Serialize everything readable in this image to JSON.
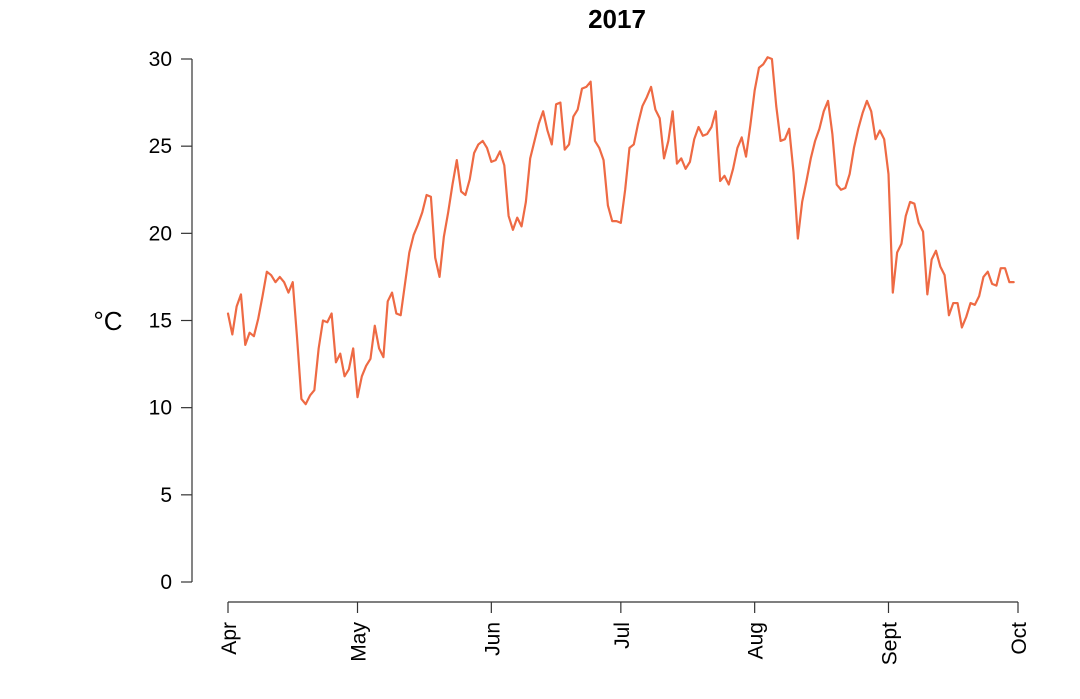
{
  "chart_data": {
    "type": "line",
    "title": "2017",
    "xlabel": "",
    "ylabel": "°C",
    "ylim": [
      0,
      30
    ],
    "yticks": [
      0,
      5,
      10,
      15,
      20,
      25,
      30
    ],
    "xlim": [
      "2017-04-01",
      "2017-10-01"
    ],
    "xticks": [
      {
        "date": "2017-04-01",
        "label": "Apr"
      },
      {
        "date": "2017-05-01",
        "label": "May"
      },
      {
        "date": "2017-06-01",
        "label": "Jun"
      },
      {
        "date": "2017-07-01",
        "label": "Jul"
      },
      {
        "date": "2017-08-01",
        "label": "Aug"
      },
      {
        "date": "2017-09-01",
        "label": "Sept"
      },
      {
        "date": "2017-10-01",
        "label": "Oct"
      }
    ],
    "grid": false,
    "legend": "none",
    "line_color": "#EE6A44",
    "series": [
      {
        "x": [
          "2017-04-01",
          "2017-04-02",
          "2017-04-03",
          "2017-04-04",
          "2017-04-05",
          "2017-04-06",
          "2017-04-07",
          "2017-04-08",
          "2017-04-09",
          "2017-04-10",
          "2017-04-11",
          "2017-04-12",
          "2017-04-13",
          "2017-04-14",
          "2017-04-15",
          "2017-04-16",
          "2017-04-17",
          "2017-04-18",
          "2017-04-19",
          "2017-04-20",
          "2017-04-21",
          "2017-04-22",
          "2017-04-23",
          "2017-04-24",
          "2017-04-25",
          "2017-04-26",
          "2017-04-27",
          "2017-04-28",
          "2017-04-29",
          "2017-04-30",
          "2017-05-01",
          "2017-05-02",
          "2017-05-03",
          "2017-05-04",
          "2017-05-05",
          "2017-05-06",
          "2017-05-07",
          "2017-05-08",
          "2017-05-09",
          "2017-05-10",
          "2017-05-11",
          "2017-05-12",
          "2017-05-13",
          "2017-05-14",
          "2017-05-15",
          "2017-05-16",
          "2017-05-17",
          "2017-05-18",
          "2017-05-19",
          "2017-05-20",
          "2017-05-21",
          "2017-05-22",
          "2017-05-23",
          "2017-05-24",
          "2017-05-25",
          "2017-05-26",
          "2017-05-27",
          "2017-05-28",
          "2017-05-29",
          "2017-05-30",
          "2017-05-31",
          "2017-06-01",
          "2017-06-02",
          "2017-06-03",
          "2017-06-04",
          "2017-06-05",
          "2017-06-06",
          "2017-06-07",
          "2017-06-08",
          "2017-06-09",
          "2017-06-10",
          "2017-06-11",
          "2017-06-12",
          "2017-06-13",
          "2017-06-14",
          "2017-06-15",
          "2017-06-16",
          "2017-06-17",
          "2017-06-18",
          "2017-06-19",
          "2017-06-20",
          "2017-06-21",
          "2017-06-22",
          "2017-06-23",
          "2017-06-24",
          "2017-06-25",
          "2017-06-26",
          "2017-06-27",
          "2017-06-28",
          "2017-06-29",
          "2017-06-30",
          "2017-07-01",
          "2017-07-02",
          "2017-07-03",
          "2017-07-04",
          "2017-07-05",
          "2017-07-06",
          "2017-07-07",
          "2017-07-08",
          "2017-07-09",
          "2017-07-10",
          "2017-07-11",
          "2017-07-12",
          "2017-07-13",
          "2017-07-14",
          "2017-07-15",
          "2017-07-16",
          "2017-07-17",
          "2017-07-18",
          "2017-07-19",
          "2017-07-20",
          "2017-07-21",
          "2017-07-22",
          "2017-07-23",
          "2017-07-24",
          "2017-07-25",
          "2017-07-26",
          "2017-07-27",
          "2017-07-28",
          "2017-07-29",
          "2017-07-30",
          "2017-07-31",
          "2017-08-01",
          "2017-08-02",
          "2017-08-03",
          "2017-08-04",
          "2017-08-05",
          "2017-08-06",
          "2017-08-07",
          "2017-08-08",
          "2017-08-09",
          "2017-08-10",
          "2017-08-11",
          "2017-08-12",
          "2017-08-13",
          "2017-08-14",
          "2017-08-15",
          "2017-08-16",
          "2017-08-17",
          "2017-08-18",
          "2017-08-19",
          "2017-08-20",
          "2017-08-21",
          "2017-08-22",
          "2017-08-23",
          "2017-08-24",
          "2017-08-25",
          "2017-08-26",
          "2017-08-27",
          "2017-08-28",
          "2017-08-29",
          "2017-08-30",
          "2017-08-31",
          "2017-09-01",
          "2017-09-02",
          "2017-09-03",
          "2017-09-04",
          "2017-09-05",
          "2017-09-06",
          "2017-09-07",
          "2017-09-08",
          "2017-09-09",
          "2017-09-10",
          "2017-09-11",
          "2017-09-12",
          "2017-09-13",
          "2017-09-14",
          "2017-09-15",
          "2017-09-16",
          "2017-09-17",
          "2017-09-18",
          "2017-09-19",
          "2017-09-20",
          "2017-09-21",
          "2017-09-22",
          "2017-09-23",
          "2017-09-24",
          "2017-09-25",
          "2017-09-26",
          "2017-09-27",
          "2017-09-28",
          "2017-09-29",
          "2017-09-30"
        ],
        "values": [
          15.4,
          14.2,
          15.8,
          16.5,
          13.6,
          14.3,
          14.1,
          15.1,
          16.4,
          17.8,
          17.6,
          17.2,
          17.5,
          17.2,
          16.6,
          17.2,
          14.0,
          10.5,
          10.2,
          10.7,
          11.0,
          13.4,
          15.0,
          14.9,
          15.4,
          12.6,
          13.1,
          11.8,
          12.2,
          13.4,
          10.6,
          11.8,
          12.4,
          12.8,
          14.7,
          13.4,
          12.9,
          16.1,
          16.6,
          15.4,
          15.3,
          17.1,
          18.9,
          19.9,
          20.5,
          21.2,
          22.2,
          22.1,
          18.6,
          17.5,
          19.8,
          21.2,
          22.8,
          24.2,
          22.4,
          22.2,
          23.1,
          24.6,
          25.1,
          25.3,
          24.9,
          24.1,
          24.2,
          24.7,
          23.9,
          21.0,
          20.2,
          20.9,
          20.4,
          21.8,
          24.3,
          25.3,
          26.3,
          27.0,
          25.9,
          25.1,
          27.4,
          27.5,
          24.8,
          25.1,
          26.7,
          27.1,
          28.3,
          28.4,
          28.7,
          25.3,
          24.9,
          24.2,
          21.6,
          20.7,
          20.7,
          20.6,
          22.5,
          24.9,
          25.1,
          26.3,
          27.3,
          27.8,
          28.4,
          27.1,
          26.6,
          24.3,
          25.3,
          27.0,
          24.0,
          24.3,
          23.7,
          24.1,
          25.4,
          26.1,
          25.6,
          25.7,
          26.1,
          27.0,
          23.0,
          23.3,
          22.8,
          23.7,
          24.9,
          25.5,
          24.4,
          26.2,
          28.2,
          29.5,
          29.7,
          30.1,
          30.0,
          27.3,
          25.3,
          25.4,
          26.0,
          23.5,
          19.7,
          21.8,
          23.0,
          24.3,
          25.3,
          26.0,
          27.0,
          27.6,
          25.7,
          22.8,
          22.5,
          22.6,
          23.4,
          24.9,
          26.0,
          26.9,
          27.6,
          27.0,
          25.4,
          25.9,
          25.4,
          23.4,
          16.6,
          18.9,
          19.4,
          21.0,
          21.8,
          21.7,
          20.6,
          20.1,
          16.5,
          18.5,
          19.0,
          18.1,
          17.6,
          15.3,
          16.0,
          16.0,
          14.6,
          15.2,
          16.0,
          15.9,
          16.4,
          17.5,
          17.8,
          17.1,
          17.0,
          18.0,
          18.0,
          17.2,
          17.2
        ]
      }
    ]
  }
}
